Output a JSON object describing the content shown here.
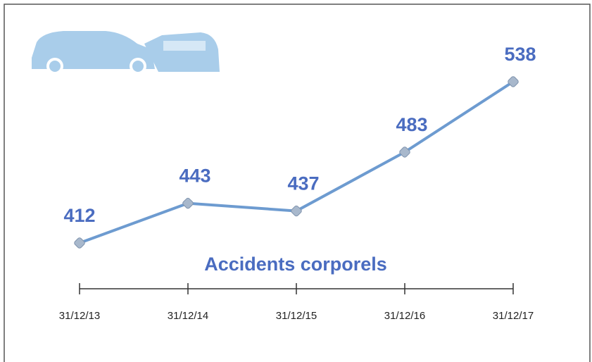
{
  "chart_data": {
    "type": "line",
    "title": "Accidents corporels",
    "categories": [
      "31/12/13",
      "31/12/14",
      "31/12/15",
      "31/12/16",
      "31/12/17"
    ],
    "series": [
      {
        "name": null,
        "color": "#6d9bd0",
        "values": [
          412,
          443,
          437,
          483,
          538
        ]
      }
    ]
  }
}
